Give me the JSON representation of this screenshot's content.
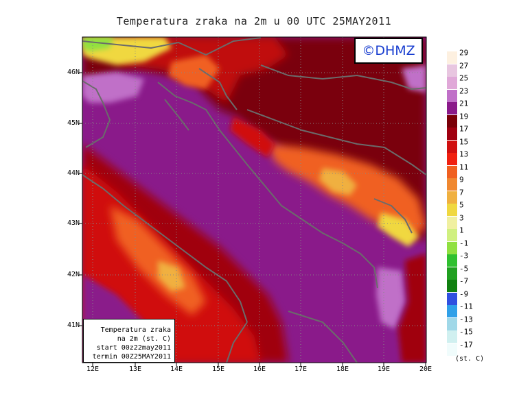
{
  "title": "Temperatura zraka na 2m u 00 UTC 25MAY2011",
  "logo": "©DHMZ",
  "infobox": {
    "line1": "Temperatura zraka",
    "line2": "na 2m (st. C)",
    "line3": "start 00z22may2011",
    "line4": "termin 00Z25MAY2011"
  },
  "lat_labels": [
    "46N",
    "45N",
    "44N",
    "43N",
    "42N",
    "41N"
  ],
  "lon_labels": [
    "12E",
    "13E",
    "14E",
    "15E",
    "16E",
    "17E",
    "18E",
    "19E",
    "20E"
  ],
  "legend": {
    "levels": [
      "29",
      "27",
      "25",
      "23",
      "21",
      "19",
      "17",
      "15",
      "13",
      "11",
      "9",
      "7",
      "5",
      "3",
      "1",
      "-1",
      "-3",
      "-5",
      "-7",
      "-9",
      "-11",
      "-13",
      "-15",
      "-17"
    ],
    "colors": [
      "#fdf0e0",
      "#e8c6e0",
      "#e0a8d8",
      "#c070c8",
      "#8a1a8a",
      "#7a0008",
      "#a00010",
      "#d01010",
      "#f02010",
      "#f06020",
      "#f08830",
      "#f0b040",
      "#f0d840",
      "#f0f0a0",
      "#d0f080",
      "#90e040",
      "#30c030",
      "#20a020",
      "#108010",
      "#3050e0",
      "#30a0e8",
      "#a0d8e8",
      "#d0f0f0",
      "#f0fcfc"
    ],
    "unit": "(st. C)"
  }
}
